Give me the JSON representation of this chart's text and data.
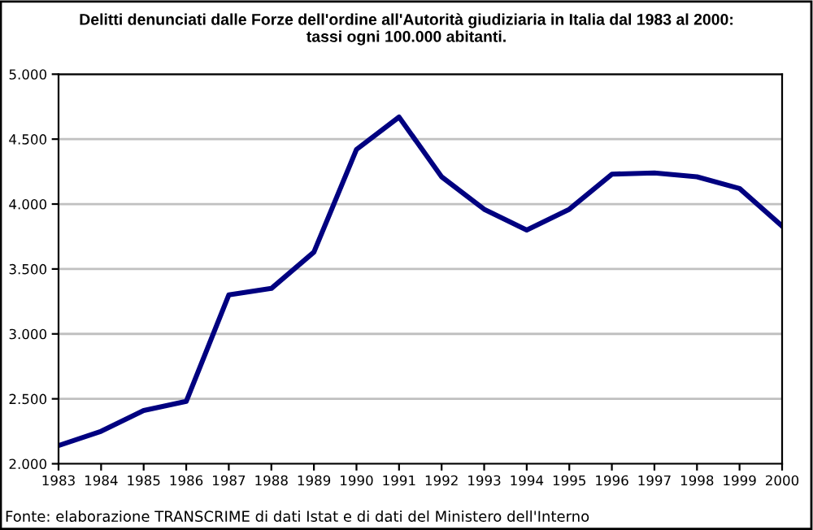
{
  "chart_data": {
    "type": "line",
    "title": "Delitti denunciati dalle Forze dell'ordine all'Autorità giudiziaria in Italia dal 1983 al 2000:\ntassi ogni 100.000 abitanti.",
    "categories": [
      "1983",
      "1984",
      "1985",
      "1986",
      "1987",
      "1988",
      "1989",
      "1990",
      "1991",
      "1992",
      "1993",
      "1994",
      "1995",
      "1996",
      "1997",
      "1998",
      "1999",
      "2000"
    ],
    "series": [
      {
        "color": "#000080",
        "values": [
          2140,
          2250,
          2410,
          2480,
          3300,
          3350,
          3630,
          4420,
          4670,
          4210,
          3960,
          3800,
          3960,
          4230,
          4240,
          4210,
          4120,
          3830
        ]
      }
    ],
    "ylim": [
      2000,
      5000
    ],
    "yticks": [
      {
        "value": 2000,
        "label": "2.000"
      },
      {
        "value": 2500,
        "label": "2.500"
      },
      {
        "value": 3000,
        "label": "3.000"
      },
      {
        "value": 3500,
        "label": "3.500"
      },
      {
        "value": 4000,
        "label": "4.000"
      },
      {
        "value": 4500,
        "label": "4.500"
      },
      {
        "value": 5000,
        "label": "5.000"
      }
    ],
    "grid": "y",
    "marker": "none",
    "line_style": "solid",
    "legend": false,
    "annotations": [
      "Fonte: elaborazione TRANSCRIME di dati Istat e di dati del Ministero dell'Interno"
    ]
  }
}
